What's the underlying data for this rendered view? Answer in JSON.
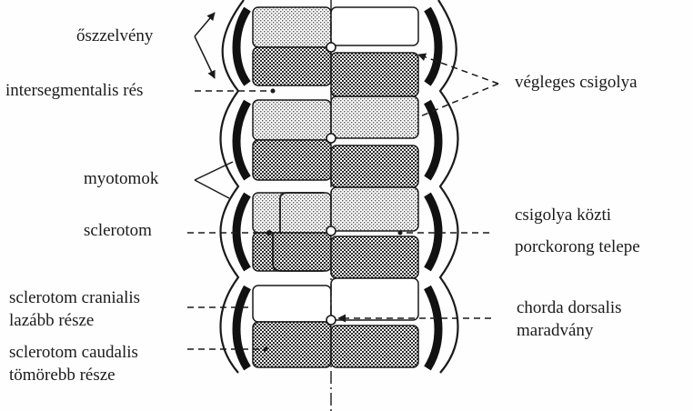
{
  "labels": {
    "osszelveny": "őszzelvény",
    "intersegmentalis": "intersegmentalis rés",
    "myotomok": "myotomok",
    "sclerotom": "sclerotom",
    "cranialis_line1": "sclerotom cranialis",
    "cranialis_line2": "lazább  része",
    "caudalis_line1": "sclerotom caudalis",
    "caudalis_line2": "tömörebb része",
    "vegleges": "végleges csigolya",
    "porckorong_line1": "csigolya közti",
    "porckorong_line2": "porckorong telepe",
    "chorda_line1": "chorda dorsalis",
    "chorda_line2": "maradvány"
  },
  "colors": {
    "ink": "#1a1a1a",
    "dense_fill": "#3a3a3a",
    "loose_fill": "#8a8a8a",
    "background": "#fefefe"
  }
}
